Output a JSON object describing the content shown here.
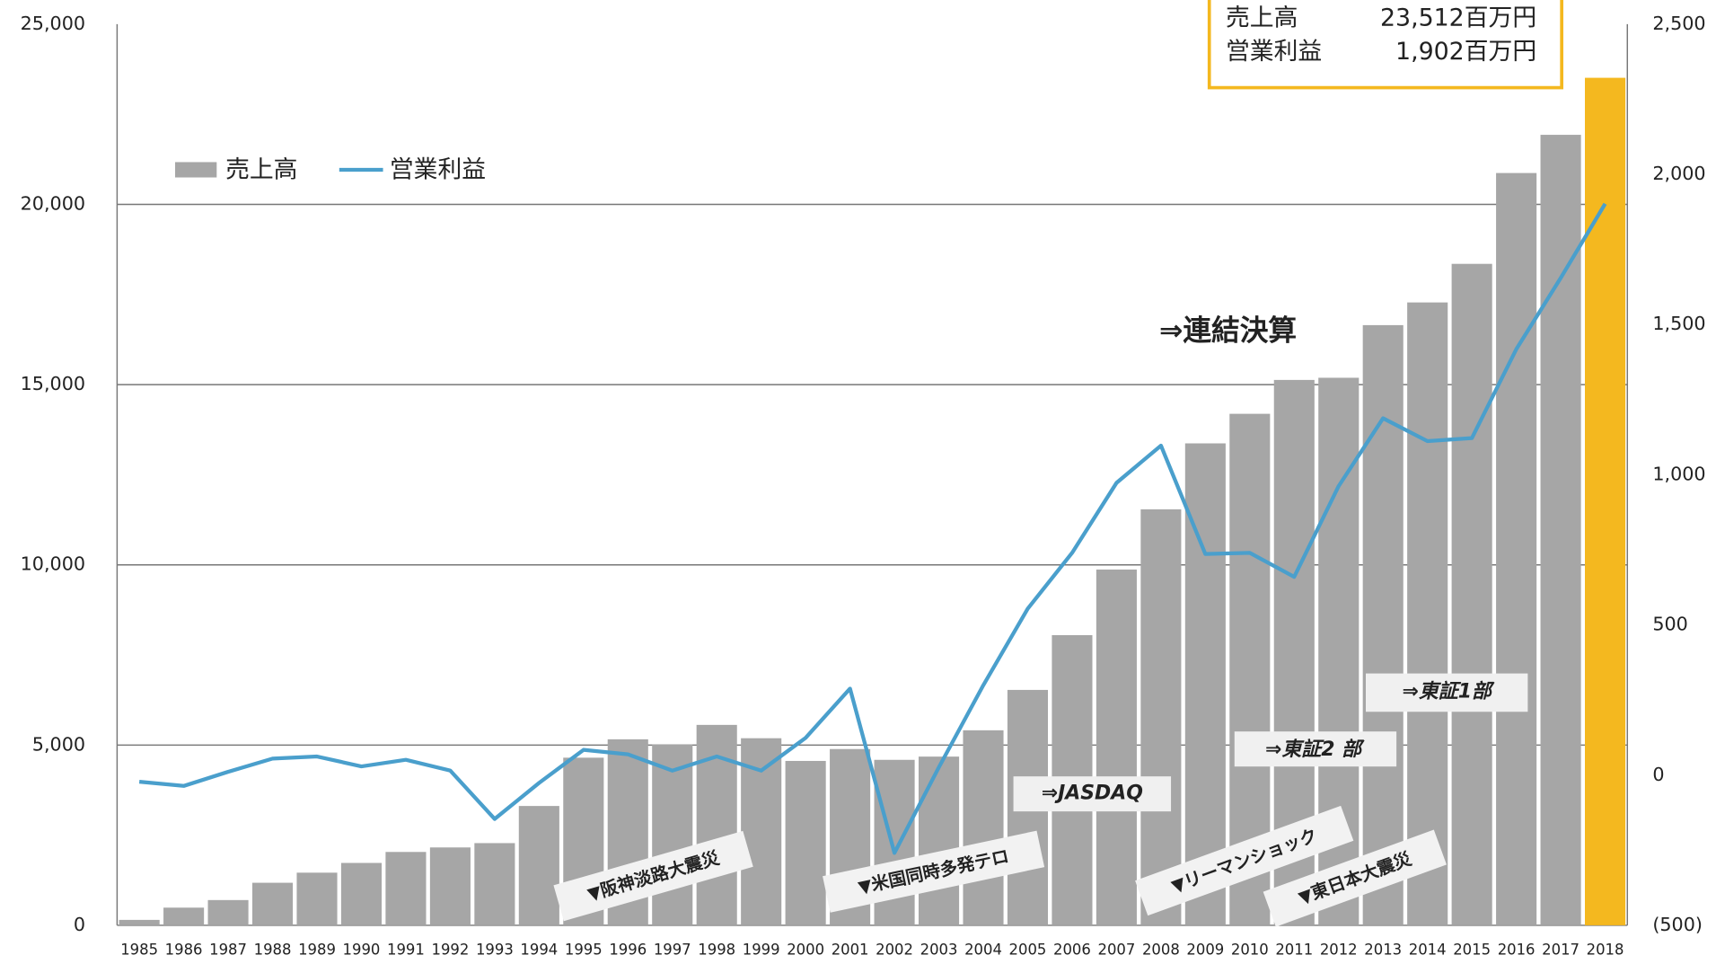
{
  "chart_data": {
    "type": "bar_line",
    "categories": [
      "1985",
      "1986",
      "1987",
      "1988",
      "1989",
      "1990",
      "1991",
      "1992",
      "1993",
      "1994",
      "1995",
      "1996",
      "1997",
      "1998",
      "1999",
      "2000",
      "2001",
      "2002",
      "2003",
      "2004",
      "2005",
      "2006",
      "2007",
      "2008",
      "2009",
      "2010",
      "2011",
      "2012",
      "2013",
      "2014",
      "2015",
      "2016",
      "2017",
      "2018"
    ],
    "series": [
      {
        "name": "売上高",
        "type": "bar",
        "color": "#a6a6a6",
        "colors": [
          "#a6a6a6",
          "#a6a6a6",
          "#a6a6a6",
          "#a6a6a6",
          "#a6a6a6",
          "#a6a6a6",
          "#a6a6a6",
          "#a6a6a6",
          "#a6a6a6",
          "#a6a6a6",
          "#a6a6a6",
          "#a6a6a6",
          "#a6a6a6",
          "#a6a6a6",
          "#a6a6a6",
          "#a6a6a6",
          "#a6a6a6",
          "#a6a6a6",
          "#a6a6a6",
          "#a6a6a6",
          "#a6a6a6",
          "#a6a6a6",
          "#a6a6a6",
          "#a6a6a6",
          "#a6a6a6",
          "#a6a6a6",
          "#a6a6a6",
          "#a6a6a6",
          "#a6a6a6",
          "#a6a6a6",
          "#a6a6a6",
          "#a6a6a6",
          "#a6a6a6",
          "#f4b81f"
        ],
        "values": [
          150,
          490,
          700,
          1180,
          1460,
          1730,
          2035,
          2160,
          2280,
          3310,
          4650,
          5160,
          5010,
          5560,
          5190,
          4560,
          4890,
          4590,
          4680,
          5410,
          6530,
          8050,
          9870,
          11540,
          13370,
          14190,
          15130,
          15190,
          16650,
          17280,
          18350,
          20870,
          21930,
          23512
        ],
        "value_labels": [
          null,
          null,
          null,
          null,
          null,
          null,
          null,
          null,
          null,
          null,
          null,
          null,
          null,
          null,
          null,
          null,
          null,
          null,
          null,
          null,
          null,
          null,
          null,
          null,
          null,
          null,
          null,
          null,
          null,
          null,
          null,
          null,
          null,
          "23,512百万円"
        ]
      },
      {
        "name": "営業利益",
        "type": "line",
        "color": "#4a9fcc",
        "axis": "y2",
        "values": [
          -22,
          -36,
          11,
          55,
          62,
          29,
          51,
          15,
          -146,
          -26,
          84,
          69,
          15,
          62,
          15,
          124,
          288,
          -259,
          26,
          299,
          554,
          740,
          973,
          1097,
          736,
          740,
          660,
          962,
          1188,
          1112,
          1122,
          1418,
          1655,
          1902
        ],
        "value_labels": [
          null,
          null,
          null,
          null,
          null,
          null,
          null,
          null,
          null,
          null,
          null,
          null,
          null,
          null,
          null,
          null,
          null,
          null,
          null,
          null,
          null,
          null,
          null,
          null,
          null,
          null,
          null,
          null,
          null,
          null,
          null,
          null,
          null,
          "1,902百万円"
        ]
      }
    ],
    "ylim": [
      0,
      25000
    ],
    "yticks": [
      0,
      {
        "value": 5000,
        "label": "5,000"
      },
      {
        "value": 10000,
        "label": "10,000"
      },
      {
        "value": 15000,
        "label": "15,000"
      },
      {
        "value": 20000,
        "label": "20,000"
      },
      {
        "value": 25000,
        "label": "25,000"
      }
    ],
    "y2lim": [
      -500,
      2500
    ],
    "y2ticks": [
      {
        "value": -500,
        "label": "(500)"
      },
      0,
      500,
      {
        "value": 1000,
        "label": "1,000"
      },
      {
        "value": 1500,
        "label": "1,500"
      },
      {
        "value": 2000,
        "label": "2,000"
      },
      {
        "value": 2500,
        "label": "2,500"
      }
    ],
    "negative_tick_color": "#c00000",
    "grid": true,
    "legend": "upper left",
    "annotations": [
      "⇒連結決算",
      "⇒JASDAQ",
      "⇒東証2 部",
      "⇒東証1部",
      "▼阪神淡路大震災",
      "▼米国同時多発テロ",
      "▼リーマンショック",
      "▼東日本大震災"
    ]
  }
}
